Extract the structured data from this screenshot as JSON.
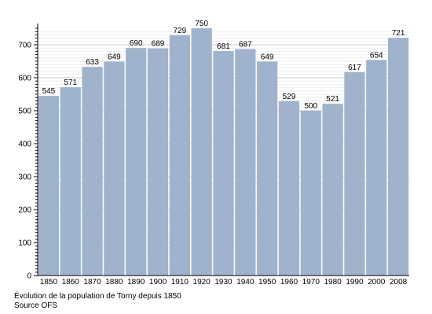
{
  "chart_data": {
    "type": "bar",
    "categories": [
      "1850",
      "1860",
      "1870",
      "1880",
      "1890",
      "1900",
      "1910",
      "1920",
      "1930",
      "1940",
      "1950",
      "1960",
      "1970",
      "1980",
      "1990",
      "2000",
      "2008"
    ],
    "values": [
      545,
      571,
      633,
      649,
      690,
      689,
      729,
      750,
      681,
      687,
      649,
      529,
      500,
      521,
      617,
      654,
      721
    ],
    "y_ticks": [
      0,
      100,
      200,
      300,
      400,
      500,
      600,
      700
    ],
    "ylim": [
      0,
      750
    ],
    "minor_grid_step": 10,
    "grid": true,
    "bar_color": "#9fb4cc",
    "title": "Évolution de la population de Torny depuis 1850",
    "source": "Source OFS",
    "xlabel": "",
    "ylabel": ""
  }
}
